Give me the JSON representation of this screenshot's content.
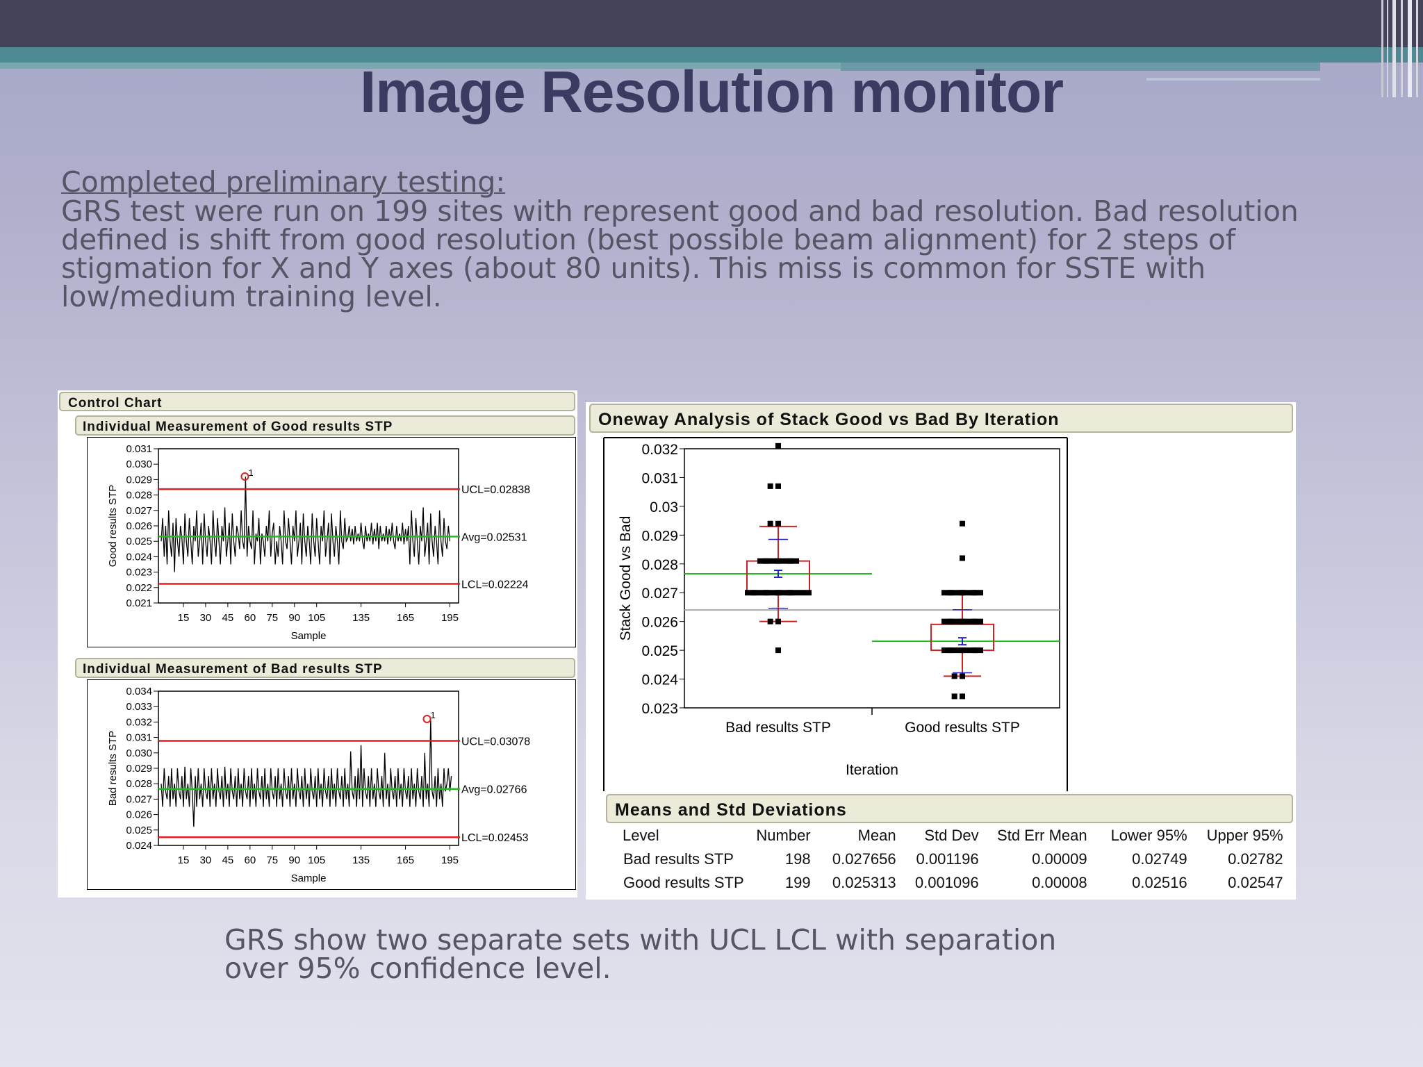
{
  "slide": {
    "title": "Image Resolution monitor",
    "subheading": "Completed preliminary testing:",
    "paragraph": "GRS test were run on 199 sites with represent good and bad resolution. Bad resolution defined is shift from good resolution (best possible beam alignment) for 2 steps of stigmation for X and Y axes (about 80 units). This miss is common for SSTE with low/medium training level.",
    "footer": "GRS show two separate sets with UCL LCL with separation over 95% confidence level."
  },
  "colors": {
    "title": "#3b3b62",
    "body_text": "#555566",
    "limit_line": "#e02020",
    "average_line": "#22bb22",
    "grand_mean_line": "#aaaaaa",
    "mean_marker": "#2222cc",
    "box": "#cc2222"
  },
  "left_panel": {
    "header": "Control Chart"
  },
  "right_panel": {
    "header": "Oneway Analysis of Stack Good vs Bad By Iteration",
    "means_header": "Means and Std Deviations",
    "table": {
      "columns": [
        "Level",
        "Number",
        "Mean",
        "Std Dev",
        "Std Err Mean",
        "Lower 95%",
        "Upper 95%"
      ],
      "rows": [
        [
          "Bad results STP",
          "198",
          "0.027656",
          "0.001196",
          "0.00009",
          "0.02749",
          "0.02782"
        ],
        [
          "Good results STP",
          "199",
          "0.025313",
          "0.001096",
          "0.00008",
          "0.02516",
          "0.02547"
        ]
      ]
    }
  },
  "chart_data": [
    {
      "type": "line",
      "title": "Individual Measurement of Good results STP",
      "xlabel": "Sample",
      "ylabel": "Good results STP",
      "xlim": [
        0,
        199
      ],
      "xticks": [
        "15",
        "30",
        "45",
        "60",
        "75",
        "90",
        "105",
        "135",
        "165",
        "195"
      ],
      "ylim": [
        0.021,
        0.031
      ],
      "yticks": [
        "0.021",
        "0.022",
        "0.023",
        "0.024",
        "0.025",
        "0.026",
        "0.027",
        "0.028",
        "0.029",
        "0.030",
        "0.031"
      ],
      "limits": {
        "UCL": 0.02838,
        "Avg": 0.02531,
        "LCL": 0.02224
      },
      "limit_labels": {
        "UCL": "UCL=0.02838",
        "Avg": "Avg=0.02531",
        "LCL": "LCL=0.02224"
      },
      "flagged_points": [
        {
          "x": 57,
          "y": 0.0292,
          "label": "1"
        }
      ],
      "values": [
        0.025,
        0.0265,
        0.024,
        0.026,
        0.0235,
        0.027,
        0.025,
        0.024,
        0.0262,
        0.023,
        0.0265,
        0.025,
        0.024,
        0.026,
        0.0252,
        0.0235,
        0.0268,
        0.025,
        0.024,
        0.0265,
        0.025,
        0.0235,
        0.026,
        0.025,
        0.027,
        0.024,
        0.025,
        0.0262,
        0.0235,
        0.0268,
        0.025,
        0.024,
        0.026,
        0.025,
        0.0235,
        0.027,
        0.025,
        0.024,
        0.0265,
        0.025,
        0.0235,
        0.026,
        0.025,
        0.0272,
        0.024,
        0.025,
        0.0262,
        0.0235,
        0.0268,
        0.025,
        0.024,
        0.026,
        0.0255,
        0.0245,
        0.027,
        0.025,
        0.0245,
        0.0292,
        0.024,
        0.026,
        0.025,
        0.0245,
        0.027,
        0.0235,
        0.0255,
        0.025,
        0.0265,
        0.0235,
        0.0255,
        0.025,
        0.024,
        0.026,
        0.025,
        0.027,
        0.024,
        0.0255,
        0.0262,
        0.0235,
        0.025,
        0.024,
        0.026,
        0.025,
        0.0235,
        0.027,
        0.025,
        0.0245,
        0.0265,
        0.025,
        0.0235,
        0.026,
        0.025,
        0.027,
        0.024,
        0.025,
        0.0262,
        0.0235,
        0.0268,
        0.025,
        0.024,
        0.026,
        0.025,
        0.0235,
        0.0268,
        0.025,
        0.024,
        0.0265,
        0.025,
        0.0235,
        0.026,
        0.025,
        0.027,
        0.024,
        0.025,
        0.0262,
        0.0235,
        0.0268,
        0.025,
        0.024,
        0.026,
        0.025,
        0.0235,
        0.027,
        0.025,
        0.0245,
        0.0265,
        0.025,
        0.0252,
        0.026,
        0.025,
        0.0258,
        0.0248,
        0.026,
        0.025,
        0.0255,
        0.025,
        0.0262,
        0.025,
        0.0245,
        0.026,
        0.025,
        0.0255,
        0.025,
        0.0262,
        0.0248,
        0.0258,
        0.025,
        0.0262,
        0.0245,
        0.026,
        0.025,
        0.0255,
        0.025,
        0.026,
        0.0248,
        0.0258,
        0.025,
        0.0262,
        0.025,
        0.0245,
        0.026,
        0.025,
        0.0255,
        0.025,
        0.0262,
        0.0248,
        0.0258,
        0.025,
        0.026,
        0.0235,
        0.027,
        0.025,
        0.024,
        0.0265,
        0.025,
        0.0235,
        0.026,
        0.025,
        0.0272,
        0.024,
        0.025,
        0.0262,
        0.0235,
        0.0268,
        0.025,
        0.024,
        0.026,
        0.025,
        0.0235,
        0.027,
        0.025,
        0.024,
        0.0265,
        0.025,
        0.0245,
        0.026,
        0.025
      ]
    },
    {
      "type": "line",
      "title": "Individual Measurement of Bad results STP",
      "xlabel": "Sample",
      "ylabel": "Bad results STP",
      "xlim": [
        0,
        199
      ],
      "xticks": [
        "15",
        "30",
        "45",
        "60",
        "75",
        "90",
        "105",
        "135",
        "165",
        "195"
      ],
      "ylim": [
        0.024,
        0.034
      ],
      "yticks": [
        "0.024",
        "0.025",
        "0.026",
        "0.027",
        "0.028",
        "0.029",
        "0.030",
        "0.031",
        "0.032",
        "0.033",
        "0.034"
      ],
      "limits": {
        "UCL": 0.03078,
        "Avg": 0.02766,
        "LCL": 0.02453
      },
      "limit_labels": {
        "UCL": "UCL=0.03078",
        "Avg": "Avg=0.02766",
        "LCL": "LCL=0.02453"
      },
      "flagged_points": [
        {
          "x": 180,
          "y": 0.0322,
          "label": "1"
        }
      ],
      "values": [
        0.028,
        0.0265,
        0.029,
        0.0275,
        0.027,
        0.0285,
        0.0265,
        0.029,
        0.027,
        0.028,
        0.0265,
        0.029,
        0.0275,
        0.027,
        0.0285,
        0.0265,
        0.0291,
        0.027,
        0.028,
        0.0265,
        0.029,
        0.0275,
        0.0252,
        0.0285,
        0.0265,
        0.029,
        0.027,
        0.028,
        0.0265,
        0.029,
        0.0275,
        0.027,
        0.0285,
        0.0265,
        0.029,
        0.027,
        0.028,
        0.0265,
        0.029,
        0.0275,
        0.027,
        0.0285,
        0.0265,
        0.0291,
        0.027,
        0.028,
        0.0265,
        0.029,
        0.0275,
        0.027,
        0.0285,
        0.0265,
        0.029,
        0.027,
        0.028,
        0.0265,
        0.029,
        0.0275,
        0.027,
        0.0285,
        0.0265,
        0.029,
        0.027,
        0.028,
        0.0265,
        0.029,
        0.0275,
        0.027,
        0.0285,
        0.0265,
        0.029,
        0.027,
        0.028,
        0.0265,
        0.029,
        0.0275,
        0.027,
        0.0285,
        0.0265,
        0.029,
        0.027,
        0.028,
        0.0265,
        0.029,
        0.0275,
        0.027,
        0.0285,
        0.0265,
        0.029,
        0.027,
        0.028,
        0.0265,
        0.029,
        0.0275,
        0.027,
        0.0285,
        0.0265,
        0.029,
        0.027,
        0.028,
        0.0265,
        0.029,
        0.0275,
        0.027,
        0.0285,
        0.0265,
        0.029,
        0.027,
        0.028,
        0.0265,
        0.029,
        0.0275,
        0.027,
        0.0285,
        0.0265,
        0.029,
        0.027,
        0.028,
        0.0265,
        0.029,
        0.0275,
        0.027,
        0.0285,
        0.0265,
        0.029,
        0.027,
        0.028,
        0.0265,
        0.0301,
        0.0275,
        0.027,
        0.0285,
        0.0265,
        0.029,
        0.027,
        0.0305,
        0.0265,
        0.029,
        0.0275,
        0.027,
        0.0285,
        0.0265,
        0.029,
        0.027,
        0.028,
        0.0265,
        0.029,
        0.0275,
        0.027,
        0.0285,
        0.0265,
        0.03,
        0.027,
        0.028,
        0.0265,
        0.029,
        0.0275,
        0.027,
        0.0285,
        0.0265,
        0.029,
        0.027,
        0.028,
        0.0265,
        0.029,
        0.0275,
        0.027,
        0.0285,
        0.0265,
        0.029,
        0.027,
        0.028,
        0.0265,
        0.029,
        0.0275,
        0.027,
        0.0285,
        0.0265,
        0.03,
        0.027,
        0.028,
        0.0265,
        0.0322,
        0.0275,
        0.027,
        0.0285,
        0.0265,
        0.029,
        0.027,
        0.028,
        0.0265,
        0.029,
        0.0275,
        0.028,
        0.029,
        0.0275,
        0.0285
      ]
    },
    {
      "type": "scatter",
      "subtype": "oneway box plot",
      "xlabel": "Iteration",
      "ylabel": "Stack Good vs Bad",
      "categories": [
        "Bad results STP",
        "Good results STP"
      ],
      "ylim": [
        0.023,
        0.032
      ],
      "yticks": [
        "0.023",
        "0.024",
        "0.025",
        "0.026",
        "0.027",
        "0.028",
        "0.029",
        "0.03",
        "0.031",
        "0.032"
      ],
      "grand_mean": 0.0264,
      "series": [
        {
          "name": "Bad results STP",
          "mean": 0.027656,
          "std_dev": 0.001196,
          "box": {
            "q1": 0.027,
            "median": 0.02765,
            "q3": 0.0281,
            "whisker_low": 0.026,
            "whisker_high": 0.0293
          },
          "points": [
            0.0321,
            0.0307,
            0.0307,
            0.0294,
            0.0294,
            0.0281,
            0.0281,
            0.0281,
            0.027,
            0.027,
            0.027,
            0.027,
            0.026,
            0.026,
            0.025
          ]
        },
        {
          "name": "Good results STP",
          "mean": 0.025313,
          "std_dev": 0.001096,
          "box": {
            "q1": 0.025,
            "median": 0.0253,
            "q3": 0.0259,
            "whisker_low": 0.0241,
            "whisker_high": 0.027
          },
          "points": [
            0.0294,
            0.0282,
            0.027,
            0.027,
            0.027,
            0.026,
            0.026,
            0.026,
            0.025,
            0.025,
            0.025,
            0.0241,
            0.0241,
            0.0234,
            0.0234
          ]
        }
      ]
    }
  ]
}
